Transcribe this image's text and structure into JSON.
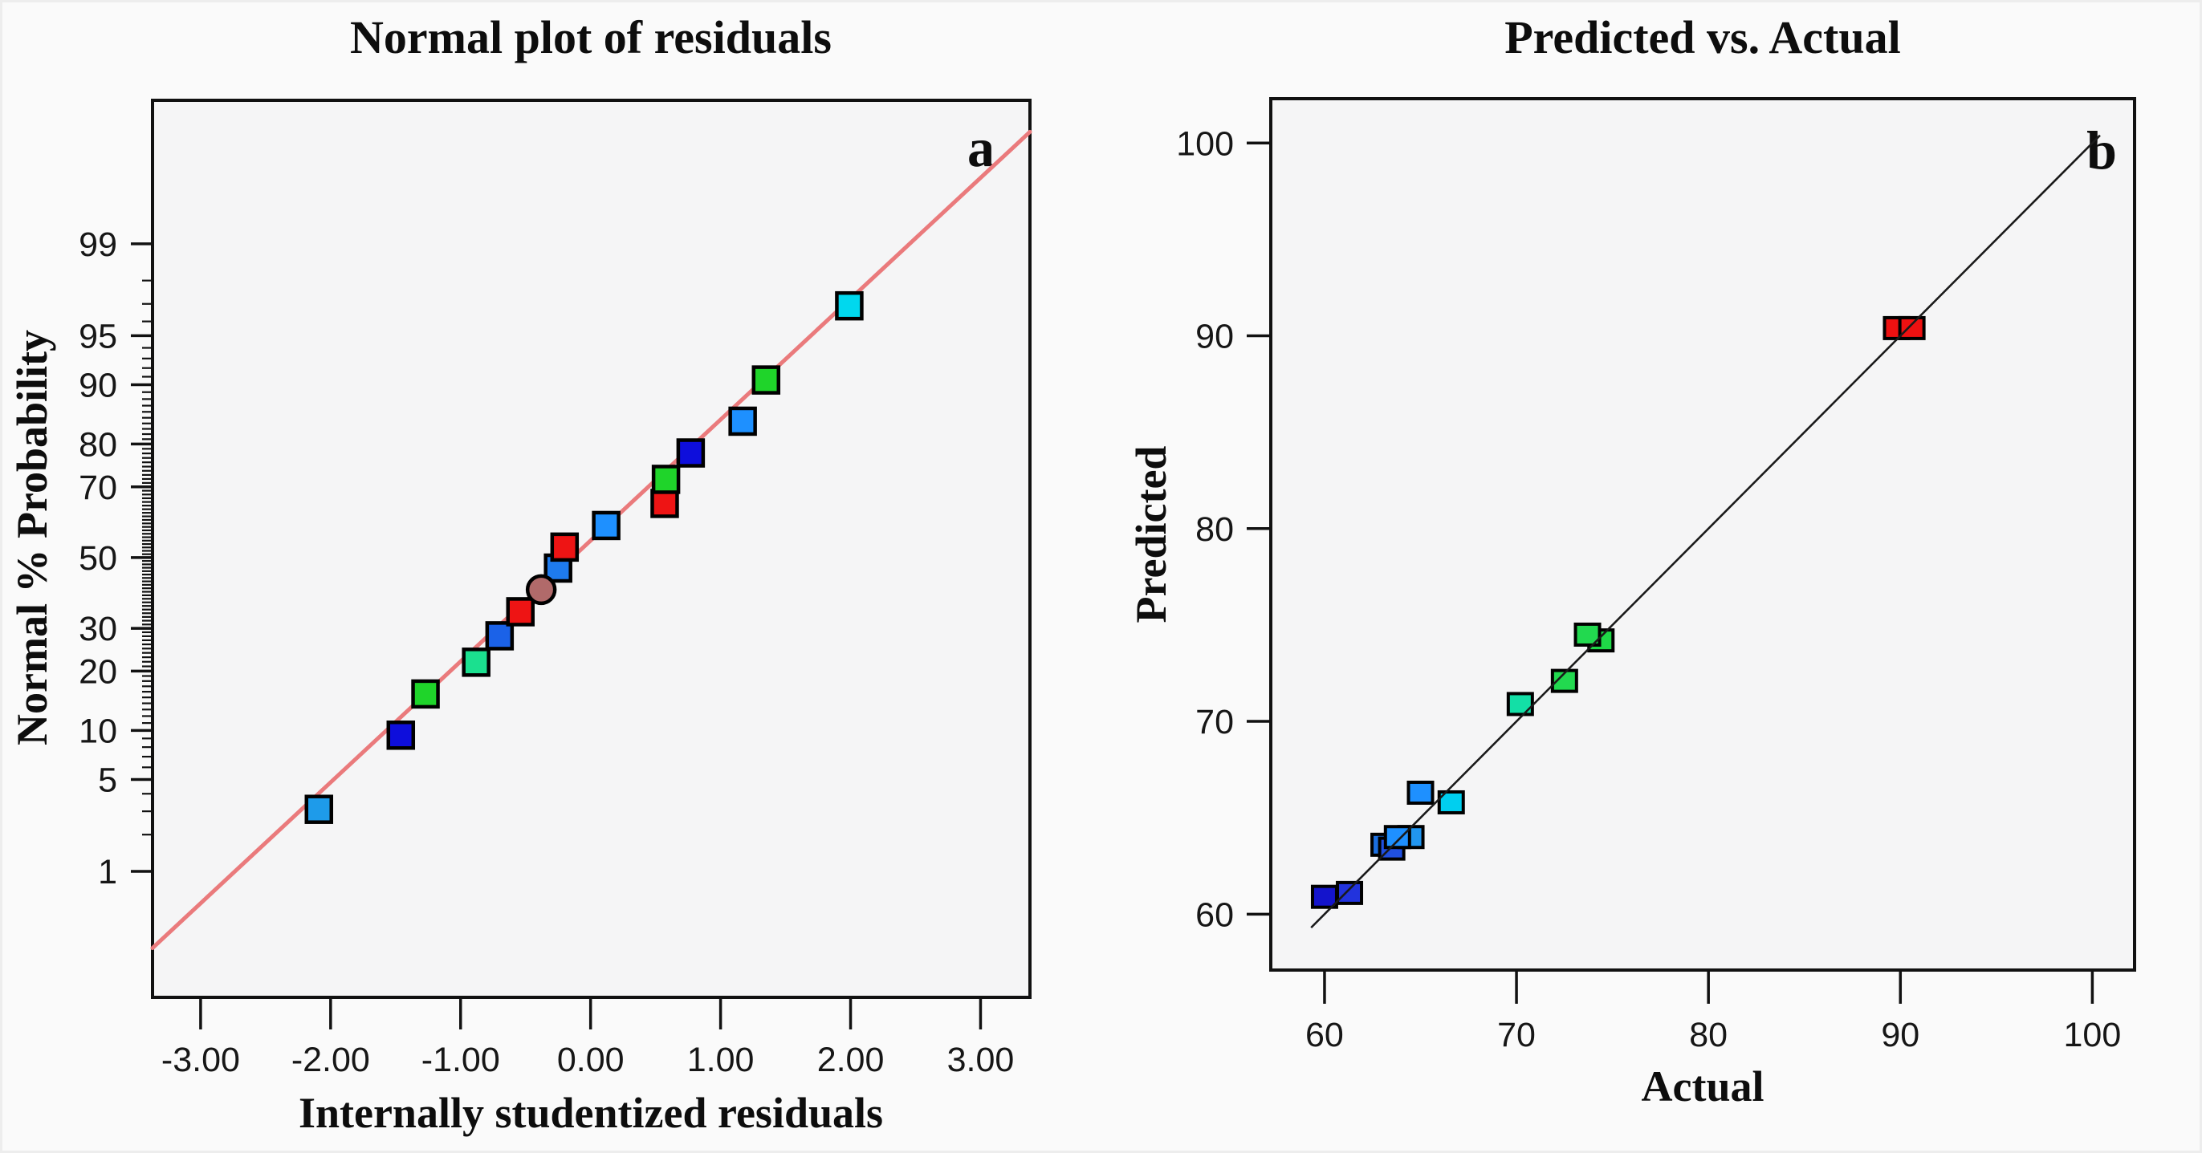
{
  "figure": {
    "background": "#fafafa",
    "plot_background": "#f5f5f6"
  },
  "chart_data": [
    {
      "panel_label": "a",
      "type": "scatter",
      "title": "Normal plot of residuals",
      "xlabel": "Internally studentized residuals",
      "ylabel": "Normal % Probability",
      "grid": false,
      "legend": false,
      "x_axis": {
        "tick_values": [
          -3,
          -2,
          -1,
          0,
          1,
          2,
          3
        ],
        "tick_labels": [
          "-3.00",
          "-2.00",
          "-1.00",
          "0.00",
          "1.00",
          "2.00",
          "3.00"
        ],
        "range": [
          -3.37,
          3.38
        ]
      },
      "y_axis": {
        "scale": "normal-probability",
        "tick_values": [
          1,
          5,
          10,
          20,
          30,
          50,
          70,
          80,
          90,
          95,
          99
        ],
        "tick_labels": [
          "1",
          "5",
          "10",
          "20",
          "30",
          "50",
          "70",
          "80",
          "90",
          "95",
          "99"
        ],
        "minor_tick_percent_min": 2,
        "minor_tick_percent_max": 98,
        "range_z": [
          -3.26,
          3.39
        ]
      },
      "fit_line": {
        "color": "#ea7a7c",
        "x": [
          -3.37,
          3.38
        ],
        "probability_pct": [
          0.19,
          99.92
        ]
      },
      "points": [
        {
          "x": -2.09,
          "probability_pct": 3.1,
          "color": "#1e9bea",
          "marker": "square"
        },
        {
          "x": -1.46,
          "probability_pct": 9.4,
          "color": "#0e0edc",
          "marker": "square"
        },
        {
          "x": -1.27,
          "probability_pct": 15.6,
          "color": "#1fd42a",
          "marker": "square"
        },
        {
          "x": -0.88,
          "probability_pct": 21.9,
          "color": "#1be08f",
          "marker": "square"
        },
        {
          "x": -0.7,
          "probability_pct": 28.1,
          "color": "#1b62e8",
          "marker": "square"
        },
        {
          "x": -0.54,
          "probability_pct": 34.4,
          "color": "#ee1414",
          "marker": "square"
        },
        {
          "x": -0.25,
          "probability_pct": 46.9,
          "color": "#1e7bee",
          "marker": "square"
        },
        {
          "x": -0.2,
          "probability_pct": 53.1,
          "color": "#ee1414",
          "marker": "square"
        },
        {
          "x": -0.38,
          "probability_pct": 40.6,
          "color": "#b16a6a",
          "marker": "circle"
        },
        {
          "x": 0.12,
          "probability_pct": 59.4,
          "color": "#1e90ff",
          "marker": "square"
        },
        {
          "x": 0.57,
          "probability_pct": 65.6,
          "color": "#ee1414",
          "marker": "square"
        },
        {
          "x": 0.58,
          "probability_pct": 71.9,
          "color": "#1fd42a",
          "marker": "square"
        },
        {
          "x": 0.77,
          "probability_pct": 78.1,
          "color": "#0e0edc",
          "marker": "square"
        },
        {
          "x": 1.17,
          "probability_pct": 84.4,
          "color": "#1e90ff",
          "marker": "square"
        },
        {
          "x": 1.35,
          "probability_pct": 90.6,
          "color": "#1fd42a",
          "marker": "square"
        },
        {
          "x": 1.99,
          "probability_pct": 96.9,
          "color": "#00d8ee",
          "marker": "square"
        }
      ]
    },
    {
      "panel_label": "b",
      "type": "scatter",
      "title": "Predicted vs. Actual",
      "xlabel": "Actual",
      "ylabel": "Predicted",
      "grid": false,
      "legend": false,
      "x_axis": {
        "tick_values": [
          60,
          70,
          80,
          90,
          100
        ],
        "tick_labels": [
          "60",
          "70",
          "80",
          "90",
          "100"
        ],
        "range": [
          57.2,
          102.2
        ]
      },
      "y_axis": {
        "tick_values": [
          60,
          70,
          80,
          90,
          100
        ],
        "tick_labels": [
          "60",
          "70",
          "80",
          "90",
          "100"
        ],
        "range": [
          57.1,
          102.3
        ]
      },
      "identity_line": {
        "color": "#1a1a1a",
        "x": [
          59.3,
          100.4
        ],
        "y": [
          59.3,
          100.4
        ]
      },
      "points": [
        {
          "actual": 60.0,
          "predicted": 60.9,
          "color": "#1414cc"
        },
        {
          "actual": 61.3,
          "predicted": 61.1,
          "color": "#2233dd"
        },
        {
          "actual": 63.1,
          "predicted": 63.6,
          "color": "#1b6fe0"
        },
        {
          "actual": 63.5,
          "predicted": 63.4,
          "color": "#2050e0"
        },
        {
          "actual": 64.5,
          "predicted": 64.0,
          "color": "#2196f0"
        },
        {
          "actual": 63.8,
          "predicted": 64.0,
          "color": "#1e90ff"
        },
        {
          "actual": 65.0,
          "predicted": 66.3,
          "color": "#1e90ff"
        },
        {
          "actual": 66.6,
          "predicted": 65.8,
          "color": "#00cfef"
        },
        {
          "actual": 70.2,
          "predicted": 70.9,
          "color": "#13dfa6"
        },
        {
          "actual": 72.5,
          "predicted": 72.1,
          "color": "#22d94f"
        },
        {
          "actual": 74.4,
          "predicted": 74.2,
          "color": "#1fd947"
        },
        {
          "actual": 73.7,
          "predicted": 74.5,
          "color": "#22d94f"
        },
        {
          "actual": 89.8,
          "predicted": 90.4,
          "color": "#ee1111"
        },
        {
          "actual": 90.6,
          "predicted": 90.4,
          "color": "#ee1111"
        }
      ]
    }
  ]
}
